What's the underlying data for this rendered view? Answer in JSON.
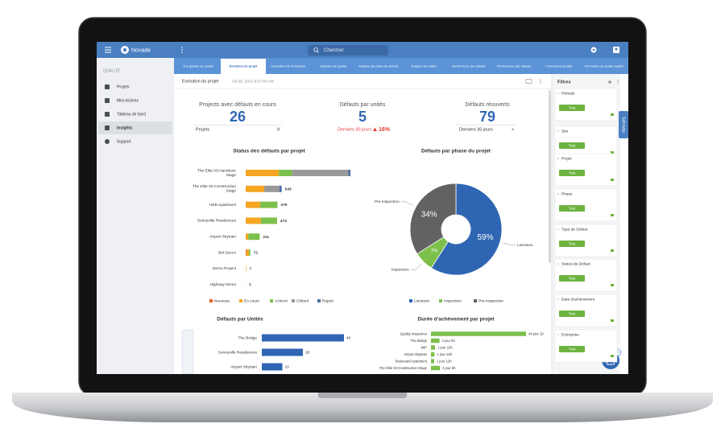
{
  "app": {
    "brand": "Novade",
    "search_placeholder": "Chercher",
    "self_help": "Self-help",
    "badge": "20"
  },
  "sidebar": {
    "section": "QUALITÉ",
    "items": [
      "Projets",
      "Mes Actions",
      "Tableau de bord",
      "Insights",
      "Support"
    ],
    "active": 3
  },
  "tabs": {
    "items": [
      "Vue globale de qualité",
      "Evolution du projet",
      "Evaluation de l'entreprise",
      "Adoption de qualité",
      "Analyse des listes de défauts",
      "Analyse des unités",
      "Performance des défauts",
      "Performance des défauts",
      "Formulaires Qualité",
      "Formulaire de qualité rejetés"
    ],
    "active": 1
  },
  "page_header": {
    "title": "Evolution du projet",
    "timestamp": "Jul 28, 2021 9:27:43 AM"
  },
  "kpis": [
    {
      "title": "Projects avec défauts en cours",
      "value": 26,
      "sub_label": "Projets",
      "sub_value": 9
    },
    {
      "title": "Défauts par unités",
      "value": 5,
      "sub_label": "Derniers 30 jours",
      "change": "16%"
    },
    {
      "title": "Défauts réouverts",
      "value": 79,
      "sub_label": "Derniers 30 jours"
    }
  ],
  "filters": {
    "title": "Filtres",
    "button": "Tout",
    "groups": [
      "Période",
      "Site",
      "Projet",
      "Phase",
      "Type de Défaut",
      "Status de Défaut",
      "Date d'achèvement",
      "Entreprise"
    ]
  },
  "charts": [
    {
      "type": "stacked-bar",
      "title": "Status des défauts par projet",
      "categories": [
        "The Elite 03-Handover Stage",
        "The Elite 02-Construction Stage",
        "HEB Apartment",
        "Sunnyville Residences",
        "Airport Skytrain",
        "Bel Decco",
        "Demo Project",
        "Highway Demo"
      ],
      "series": [
        {
          "name": "Nouveau",
          "color": "#e8622c",
          "values": [
            0,
            0,
            0,
            0,
            0,
            10,
            0,
            0
          ]
        },
        {
          "name": "En cours",
          "color": "#f5a623",
          "values": [
            500,
            280,
            220,
            230,
            40,
            40,
            7,
            1
          ]
        },
        {
          "name": "Achevé",
          "color": "#7cc04b",
          "values": [
            200,
            0,
            259,
            243,
            171,
            21,
            0,
            0
          ]
        },
        {
          "name": "Clôturé",
          "color": "#999999",
          "values": [
            850,
            230,
            0,
            0,
            0,
            0,
            0,
            0
          ]
        },
        {
          "name": "Rejeté",
          "color": "#4a6fa5",
          "values": [
            30,
            33,
            0,
            0,
            0,
            0,
            0,
            0
          ]
        }
      ],
      "total_labels": [
        null,
        "543",
        "479",
        "473",
        "211",
        "71",
        "7",
        "1"
      ]
    },
    {
      "type": "donut",
      "title": "Défauts par phase du projet",
      "categories": [
        "Livraison",
        "Inspection",
        "Pre-Inspection"
      ],
      "values": [
        59,
        7,
        34
      ],
      "value_labels": [
        "59%",
        "7%",
        "34%"
      ],
      "colors": [
        "#2f66b3",
        "#7cc04b",
        "#626262"
      ]
    },
    {
      "type": "bar",
      "title": "Défauts par Unités",
      "categories": [
        "The Bridge",
        "Sunnyville Residences",
        "Airport Skytrain"
      ],
      "values": [
        40,
        20,
        10
      ],
      "color": "#2f66b3"
    },
    {
      "type": "bar",
      "title": "Durée d'achèvement par projet",
      "categories": [
        "Quality Inspection",
        "The Bridge",
        "MIP",
        "Airport Skytrain",
        "Boulevard Apartment",
        "The Elite 02-Construction Stage"
      ],
      "values": [
        44.79,
        4,
        1.92,
        1.67,
        1.5,
        4.25
      ],
      "value_labels": [
        "44 jour 19",
        "4 jour 0h",
        "1 jour 22h",
        "1 jour 16h",
        "1 jour 12h",
        "4 jour 6h"
      ],
      "color": "#7cc04b"
    }
  ]
}
